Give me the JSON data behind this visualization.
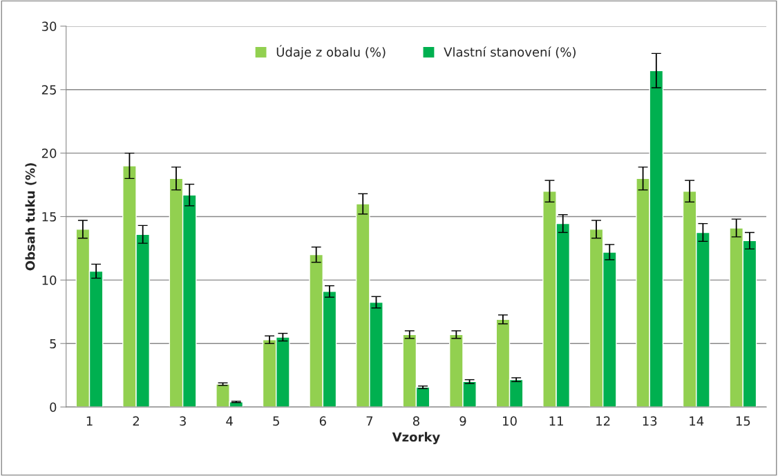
{
  "chart_data": {
    "type": "bar",
    "xlabel": "Vzorky",
    "ylabel": "Obsah tuku (%)",
    "categories": [
      "1",
      "2",
      "3",
      "4",
      "5",
      "6",
      "7",
      "8",
      "9",
      "10",
      "11",
      "12",
      "13",
      "14",
      "15"
    ],
    "series": [
      {
        "name": "Údaje z obalu (%)",
        "color": "#92d050",
        "values": [
          14,
          19,
          18,
          1.8,
          5.3,
          12,
          16,
          5.7,
          5.7,
          6.9,
          17,
          14,
          18,
          17,
          14.1
        ],
        "errors": [
          0.7,
          1.0,
          0.9,
          0.1,
          0.3,
          0.6,
          0.8,
          0.3,
          0.3,
          0.35,
          0.85,
          0.7,
          0.9,
          0.85,
          0.7
        ]
      },
      {
        "name": "Vlastní stanovení (%)",
        "color": "#00b050",
        "values": [
          10.7,
          13.6,
          16.7,
          0.4,
          5.5,
          9.1,
          8.25,
          1.55,
          2.0,
          2.15,
          14.45,
          12.2,
          26.5,
          13.75,
          13.1
        ],
        "errors": [
          0.55,
          0.7,
          0.85,
          0.05,
          0.3,
          0.45,
          0.45,
          0.1,
          0.15,
          0.15,
          0.7,
          0.6,
          1.35,
          0.7,
          0.65
        ]
      }
    ],
    "ylim": [
      0,
      30
    ],
    "yticks": [
      0,
      5,
      10,
      15,
      20,
      25,
      30
    ],
    "grid": "y",
    "legend": "top"
  }
}
